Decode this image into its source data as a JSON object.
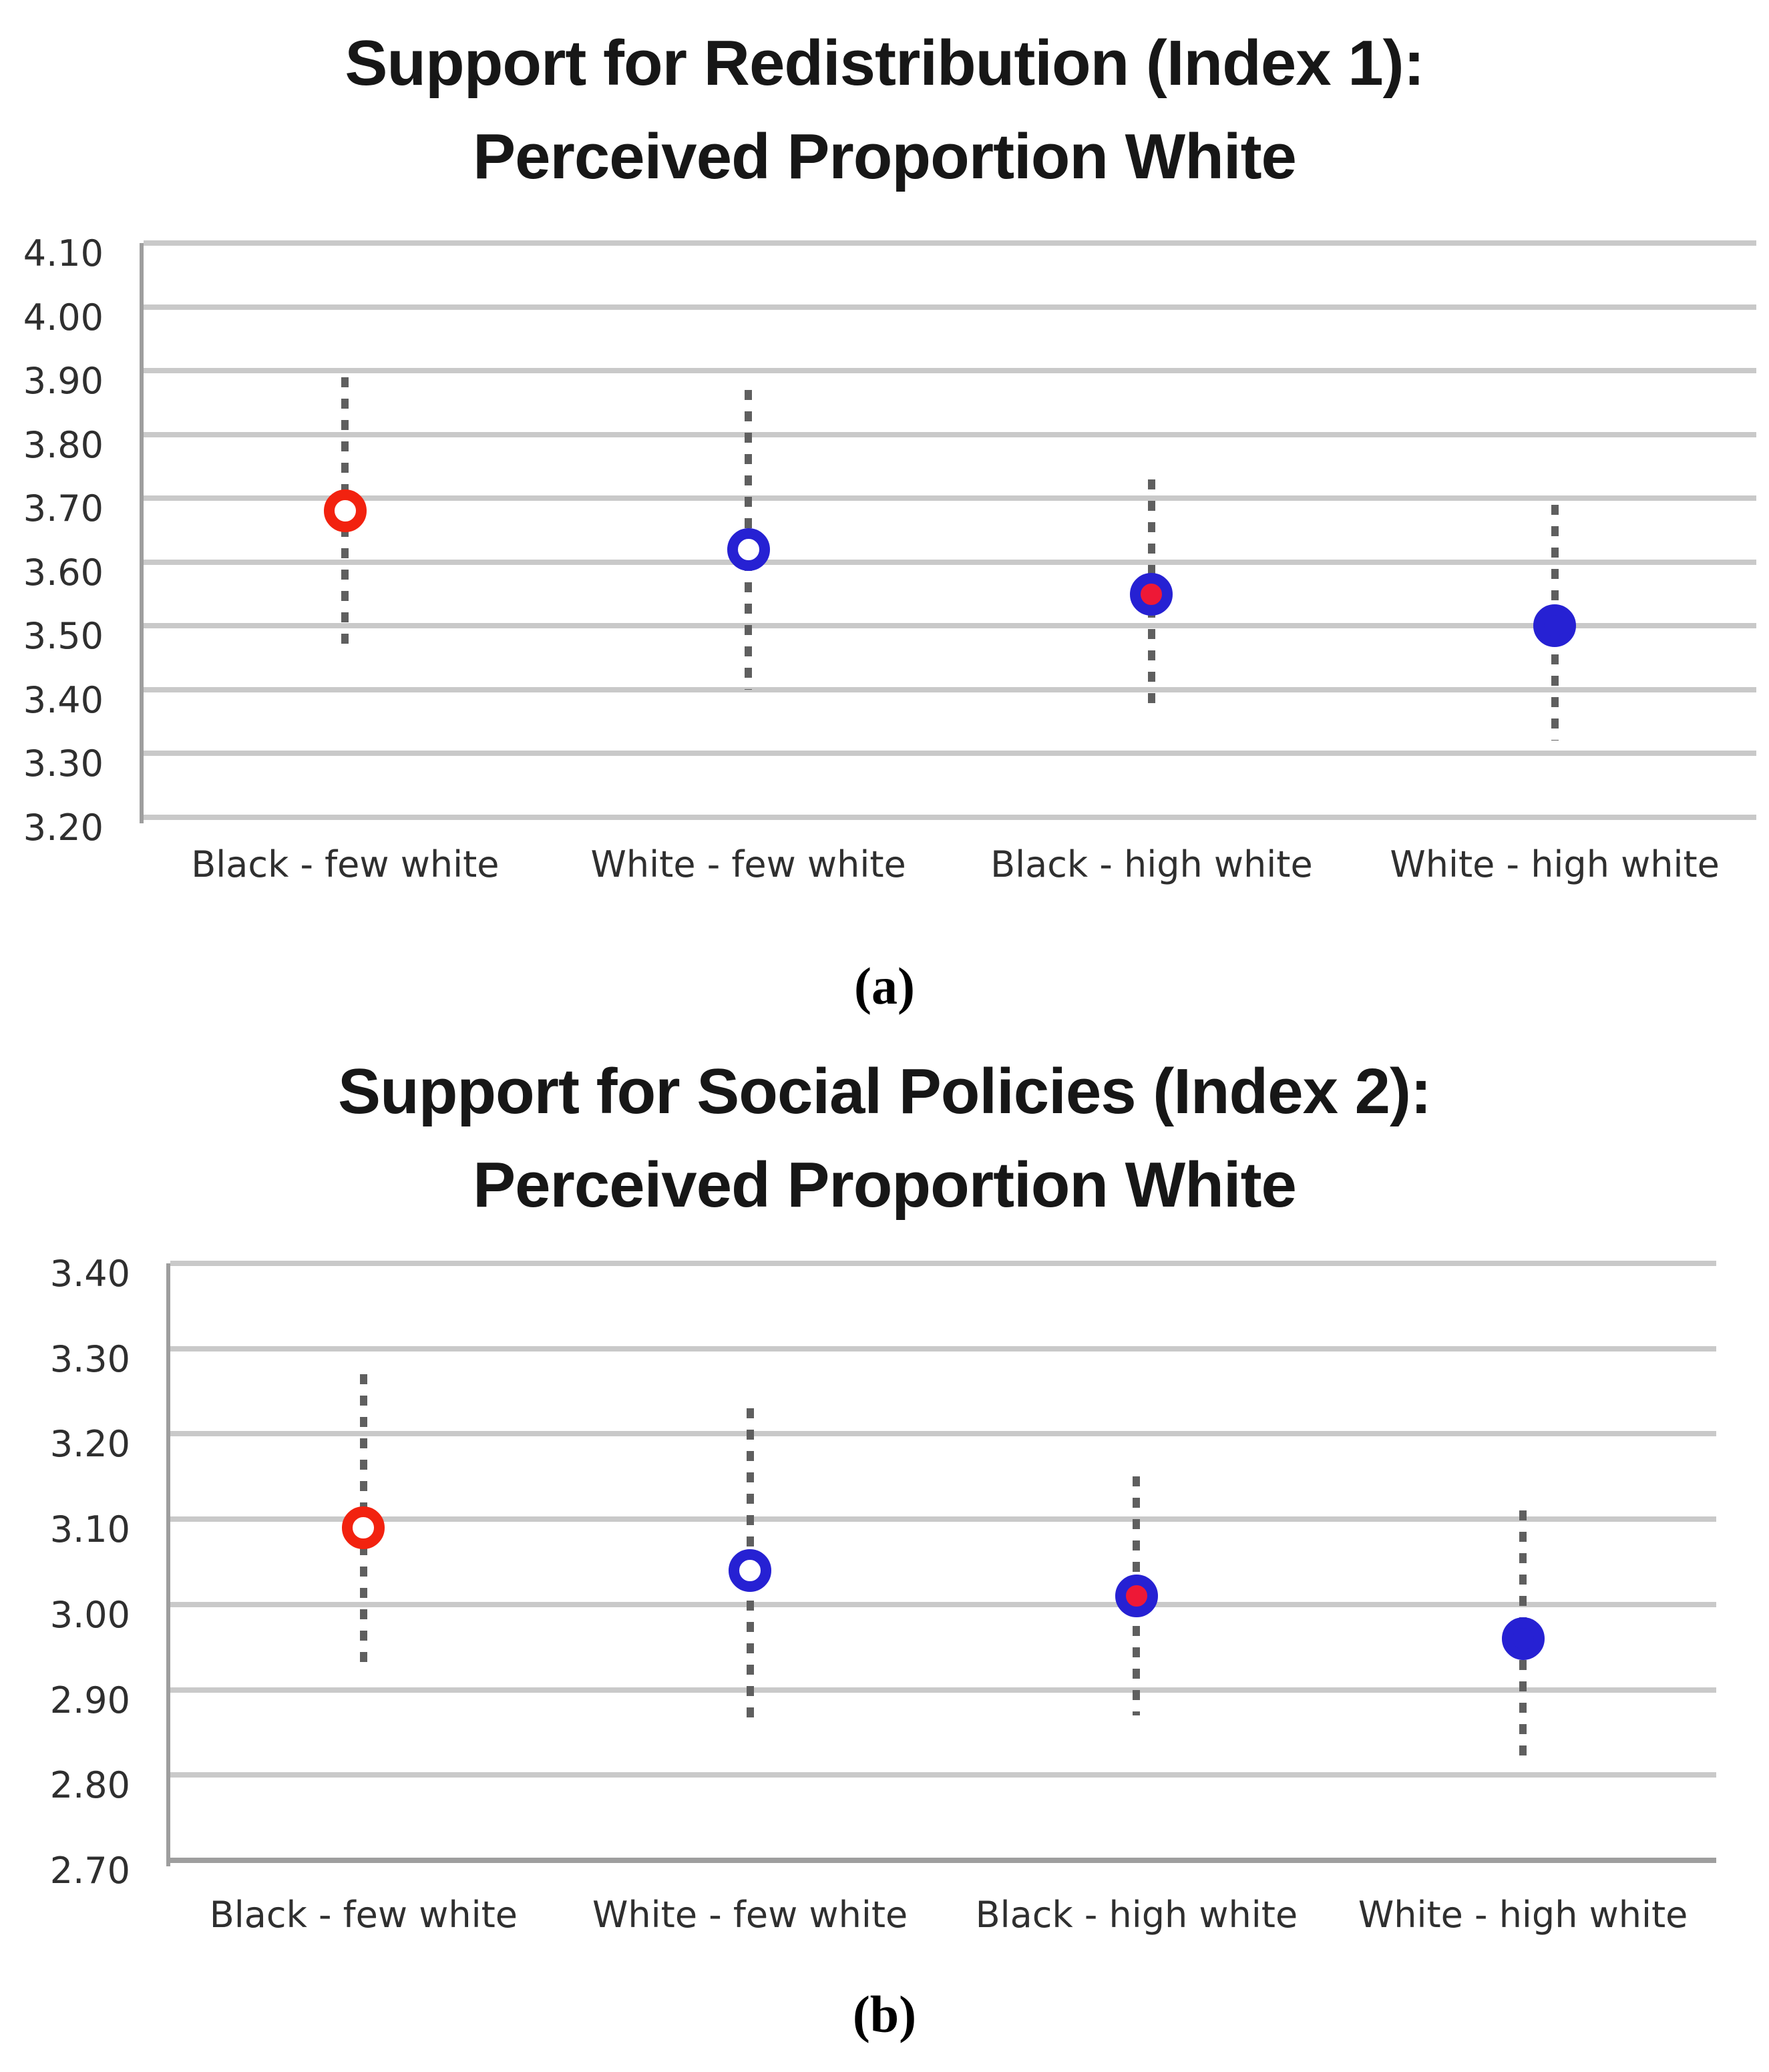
{
  "colors": {
    "red": "#f2220f",
    "blue": "#2621d3",
    "marker_red_fill": "#ee1836",
    "gridline": "#c9c9c9",
    "axis": "#9e9e9e",
    "error_bar": "#5f5f5f",
    "text": "#2f2f2f",
    "title_text": "#171717"
  },
  "chart_data": [
    {
      "id": "a",
      "type": "scatter",
      "title": "Support for Redistribution (Index 1): Perceived Proportion White",
      "title_line1": "Support for Redistribution (Index 1):",
      "title_line2": "Perceived Proportion White",
      "caption": "(a)",
      "xlabel": "",
      "ylabel": "",
      "ylim": [
        3.2,
        4.1
      ],
      "ytick_step": 0.1,
      "yticks": [
        "4.10",
        "4.00",
        "3.90",
        "3.80",
        "3.70",
        "3.60",
        "3.50",
        "3.40",
        "3.30",
        "3.20"
      ],
      "grid": "horizontal",
      "legend": "none",
      "bottom_axis_dark": false,
      "categories": [
        "Black - few white",
        "White - few white",
        "Black - high white",
        "White - high white"
      ],
      "points": [
        {
          "label": "Black - few white",
          "marker": "open-red",
          "mean": 3.68,
          "ci_low": 3.47,
          "ci_high": 3.89
        },
        {
          "label": "White - few white",
          "marker": "open-blue",
          "mean": 3.62,
          "ci_low": 3.4,
          "ci_high": 3.87
        },
        {
          "label": "Black - high white",
          "marker": "blue-ring-red-fill",
          "mean": 3.55,
          "ci_low": 3.37,
          "ci_high": 3.73
        },
        {
          "label": "White - high white",
          "marker": "solid-blue",
          "mean": 3.5,
          "ci_low": 3.32,
          "ci_high": 3.69
        }
      ]
    },
    {
      "id": "b",
      "type": "scatter",
      "title": "Support for Social Policies (Index 2): Perceived Proportion White",
      "title_line1": "Support for Social Policies (Index 2):",
      "title_line2": "Perceived Proportion White",
      "caption": "(b)",
      "xlabel": "",
      "ylabel": "",
      "ylim": [
        2.7,
        3.4
      ],
      "ytick_step": 0.1,
      "yticks": [
        "3.40",
        "3.30",
        "3.20",
        "3.10",
        "3.00",
        "2.90",
        "2.80",
        "2.70"
      ],
      "grid": "horizontal",
      "legend": "none",
      "bottom_axis_dark": true,
      "categories": [
        "Black - few white",
        "White - few white",
        "Black - high white",
        "White - high white"
      ],
      "points": [
        {
          "label": "Black - few white",
          "marker": "open-red",
          "mean": 3.09,
          "ci_low": 2.92,
          "ci_high": 3.27
        },
        {
          "label": "White - few white",
          "marker": "open-blue",
          "mean": 3.04,
          "ci_low": 2.86,
          "ci_high": 3.23
        },
        {
          "label": "Black - high white",
          "marker": "blue-ring-red-fill",
          "mean": 3.01,
          "ci_low": 2.87,
          "ci_high": 3.15
        },
        {
          "label": "White - high white",
          "marker": "solid-blue",
          "mean": 2.96,
          "ci_low": 2.81,
          "ci_high": 3.11
        }
      ]
    }
  ]
}
